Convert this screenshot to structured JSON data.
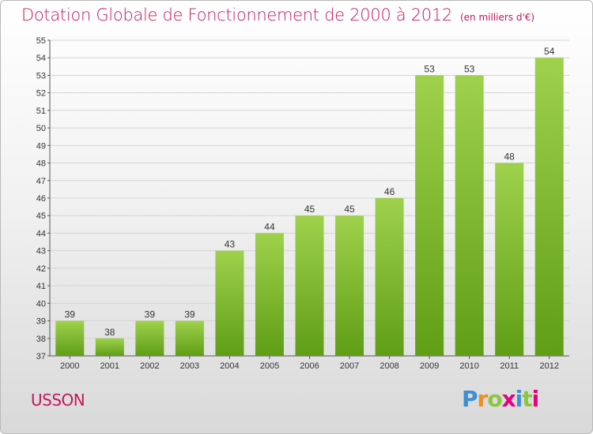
{
  "title": "Dotation Globale de Fonctionnement de 2000 à 2012",
  "subtitle": "(en milliers d'€)",
  "commune": "USSON",
  "brand": {
    "letters": [
      "P",
      "r",
      "o",
      "x",
      "i",
      "t",
      "i"
    ],
    "colors": [
      "#3a8fd6",
      "#f28c1e",
      "#8cc63f",
      "#e6007e",
      "#3a8fd6",
      "#8cc63f",
      "#e6007e"
    ]
  },
  "colors": {
    "bar_top": "#9fd14c",
    "bar_bottom": "#5f9e16",
    "accent": "#c2185b",
    "grid": "#d4d4d4",
    "axis": "#555555"
  },
  "chart_data": {
    "type": "bar",
    "categories": [
      "2000",
      "2001",
      "2002",
      "2003",
      "2004",
      "2005",
      "2006",
      "2007",
      "2008",
      "2009",
      "2010",
      "2011",
      "2012"
    ],
    "values": [
      39,
      38,
      39,
      39,
      43,
      44,
      45,
      45,
      46,
      53,
      53,
      48,
      54
    ],
    "data_labels": [
      "39",
      "38",
      "39",
      "39",
      "43",
      "44",
      "45",
      "45",
      "46",
      "53",
      "53",
      "48",
      "54"
    ],
    "y_ticks": [
      "37",
      "38",
      "39",
      "40",
      "41",
      "42",
      "43",
      "44",
      "45",
      "46",
      "47",
      "48",
      "49",
      "50",
      "51",
      "52",
      "53",
      "54",
      "55"
    ],
    "ylim": [
      37,
      55
    ],
    "grid": true,
    "legend": "none"
  }
}
